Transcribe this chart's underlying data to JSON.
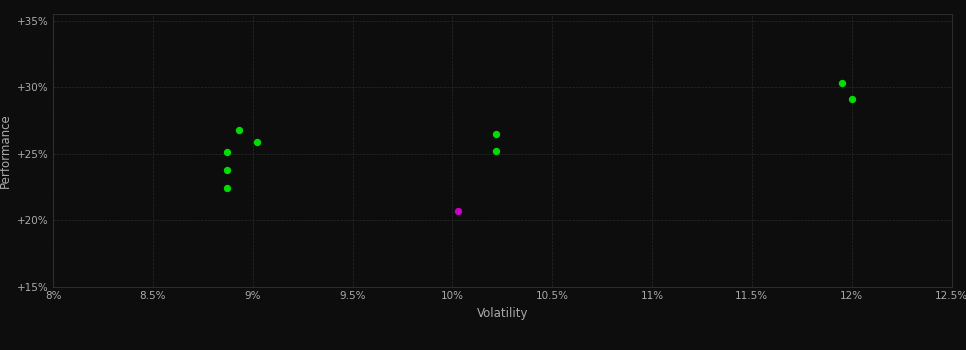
{
  "background_color": "#0d0d0d",
  "plot_bg_color": "#0d0d0d",
  "grid_color": "#2a2a2a",
  "text_color": "#aaaaaa",
  "xlabel": "Volatility",
  "ylabel": "Performance",
  "xlim": [
    0.08,
    0.125
  ],
  "ylim": [
    0.15,
    0.355
  ],
  "xticks": [
    0.08,
    0.085,
    0.09,
    0.095,
    0.1,
    0.105,
    0.11,
    0.115,
    0.12,
    0.125
  ],
  "yticks": [
    0.15,
    0.2,
    0.25,
    0.3,
    0.35
  ],
  "green_points": [
    [
      0.0893,
      0.268
    ],
    [
      0.0902,
      0.259
    ],
    [
      0.0887,
      0.251
    ],
    [
      0.0887,
      0.238
    ],
    [
      0.0887,
      0.224
    ],
    [
      0.1022,
      0.265
    ],
    [
      0.1022,
      0.252
    ],
    [
      0.1195,
      0.303
    ],
    [
      0.12,
      0.291
    ]
  ],
  "magenta_points": [
    [
      0.1003,
      0.207
    ]
  ],
  "green_color": "#00dd00",
  "magenta_color": "#cc00cc",
  "marker_size": 28,
  "spine_color": "#3a3a3a"
}
